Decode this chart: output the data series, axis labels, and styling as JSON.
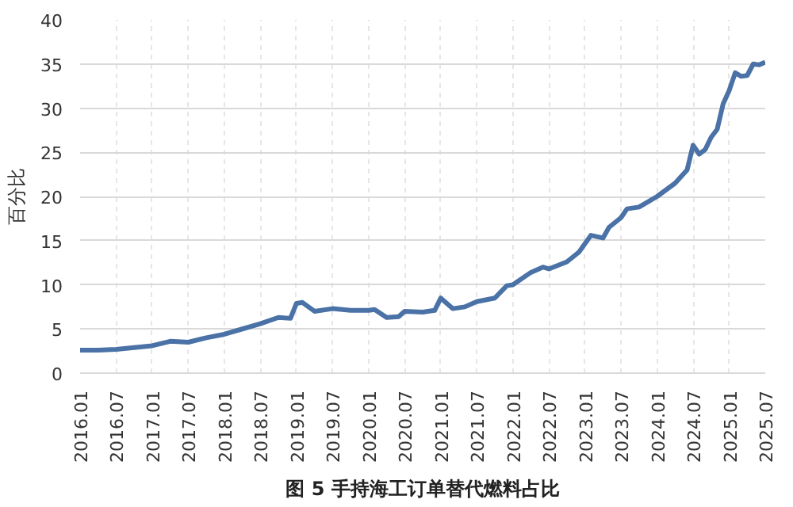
{
  "chart_data": {
    "type": "line",
    "title": "图 5 手持海工订单替代燃料占比",
    "ylabel": "百分比",
    "x": [
      "2016-01",
      "2016-04",
      "2016-07",
      "2016-10",
      "2017-01",
      "2017-04",
      "2017-07",
      "2017-10",
      "2018-01",
      "2018-04",
      "2018-07",
      "2018-10",
      "2018-12",
      "2019-01",
      "2019-02",
      "2019-04",
      "2019-07",
      "2019-10",
      "2020-01",
      "2020-02",
      "2020-04",
      "2020-06",
      "2020-07",
      "2020-10",
      "2020-12",
      "2021-01",
      "2021-03",
      "2021-05",
      "2021-07",
      "2021-10",
      "2021-12",
      "2022-01",
      "2022-04",
      "2022-06",
      "2022-07",
      "2022-10",
      "2022-12",
      "2023-02",
      "2023-04",
      "2023-05",
      "2023-07",
      "2023-08",
      "2023-10",
      "2024-01",
      "2024-04",
      "2024-06",
      "2024-07",
      "2024-08",
      "2024-09",
      "2024-10",
      "2024-11",
      "2024-12",
      "2025-01",
      "2025-02",
      "2025-03",
      "2025-04",
      "2025-05",
      "2025-06",
      "2025-07"
    ],
    "series": [
      {
        "color": "#4a72a6",
        "values": [
          2.6,
          2.6,
          2.7,
          2.9,
          3.1,
          3.6,
          3.5,
          4.0,
          4.4,
          5.0,
          5.6,
          6.3,
          6.2,
          7.9,
          8.0,
          7.0,
          7.3,
          7.1,
          7.1,
          7.2,
          6.3,
          6.4,
          7.0,
          6.9,
          7.1,
          8.5,
          7.3,
          7.5,
          8.1,
          8.5,
          9.9,
          10.0,
          11.4,
          12.0,
          11.8,
          12.6,
          13.7,
          15.6,
          15.3,
          16.5,
          17.6,
          18.6,
          18.8,
          20.0,
          21.5,
          23.0,
          25.8,
          24.8,
          25.3,
          26.7,
          27.6,
          30.5,
          32.0,
          34.0,
          33.6,
          33.7,
          35.0,
          34.9,
          35.2
        ]
      }
    ],
    "xlim": [
      "2016-01",
      "2025-07"
    ],
    "xticks": [
      {
        "value": "2016-01",
        "label": "2016.01"
      },
      {
        "value": "2016-07",
        "label": "2016.07"
      },
      {
        "value": "2017-01",
        "label": "2017.01"
      },
      {
        "value": "2017-07",
        "label": "2017.07"
      },
      {
        "value": "2018-01",
        "label": "2018.01"
      },
      {
        "value": "2018-07",
        "label": "2018.07"
      },
      {
        "value": "2019-01",
        "label": "2019.01"
      },
      {
        "value": "2019-07",
        "label": "2019.07"
      },
      {
        "value": "2020-01",
        "label": "2020.01"
      },
      {
        "value": "2020-07",
        "label": "2020.07"
      },
      {
        "value": "2021-01",
        "label": "2021.01"
      },
      {
        "value": "2021-07",
        "label": "2021.07"
      },
      {
        "value": "2022-01",
        "label": "2022.01"
      },
      {
        "value": "2022-07",
        "label": "2022.07"
      },
      {
        "value": "2023-01",
        "label": "2023.01"
      },
      {
        "value": "2023-07",
        "label": "2023.07"
      },
      {
        "value": "2024-01",
        "label": "2024.01"
      },
      {
        "value": "2024-07",
        "label": "2024.07"
      },
      {
        "value": "2025-01",
        "label": "2025.01"
      },
      {
        "value": "2025-07",
        "label": "2025.07"
      }
    ],
    "ylim": [
      0,
      40
    ],
    "yticks": [
      0,
      5,
      10,
      15,
      20,
      25,
      30,
      35,
      40
    ],
    "grid": true,
    "marker": "none",
    "line_style": "solid"
  }
}
